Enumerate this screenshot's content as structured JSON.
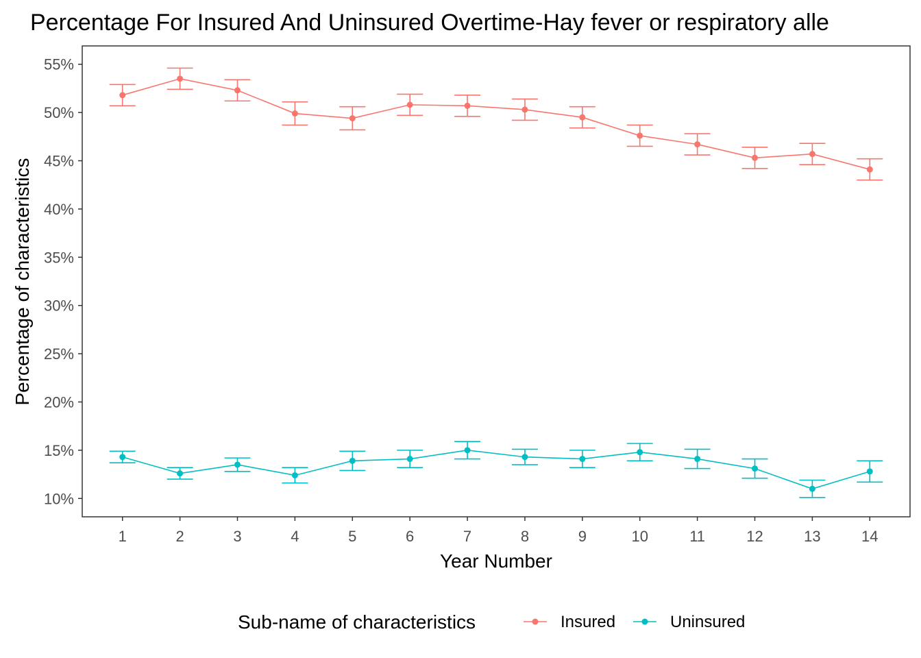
{
  "chart_data": {
    "type": "line",
    "title": "Percentage For Insured And Uninsured Overtime-Hay fever or respiratory alle",
    "xlabel": "Year Number",
    "ylabel": "Percentage of characteristics",
    "x": [
      1,
      2,
      3,
      4,
      5,
      6,
      7,
      8,
      9,
      10,
      11,
      12,
      13,
      14
    ],
    "x_tick_labels": [
      "1",
      "2",
      "3",
      "4",
      "5",
      "6",
      "7",
      "8",
      "9",
      "10",
      "11",
      "12",
      "13",
      "14"
    ],
    "y_ticks": [
      10,
      15,
      20,
      25,
      30,
      35,
      40,
      45,
      50,
      55
    ],
    "y_tick_labels": [
      "10%",
      "15%",
      "20%",
      "25%",
      "30%",
      "35%",
      "40%",
      "45%",
      "50%",
      "55%"
    ],
    "xlim": [
      0.3,
      14.7
    ],
    "ylim": [
      8.1,
      56.9
    ],
    "grid": false,
    "legend": {
      "title": "Sub-name of characteristics",
      "position": "bottom"
    },
    "series": [
      {
        "name": "Insured",
        "color": "#F8766D",
        "values": [
          51.8,
          53.5,
          52.3,
          49.9,
          49.4,
          50.8,
          50.7,
          50.3,
          49.5,
          47.6,
          46.7,
          45.3,
          45.7,
          44.1
        ],
        "lower": [
          50.7,
          52.4,
          51.2,
          48.7,
          48.2,
          49.7,
          49.6,
          49.2,
          48.4,
          46.5,
          45.6,
          44.2,
          44.6,
          43.0
        ],
        "upper": [
          52.9,
          54.6,
          53.4,
          51.1,
          50.6,
          51.9,
          51.8,
          51.4,
          50.6,
          48.7,
          47.8,
          46.4,
          46.8,
          45.2
        ]
      },
      {
        "name": "Uninsured",
        "color": "#00BFC4",
        "values": [
          14.3,
          12.6,
          13.5,
          12.4,
          13.9,
          14.1,
          15.0,
          14.3,
          14.1,
          14.8,
          14.1,
          13.1,
          11.0,
          12.8
        ],
        "lower": [
          13.7,
          12.0,
          12.8,
          11.6,
          12.9,
          13.2,
          14.1,
          13.5,
          13.2,
          13.9,
          13.1,
          12.1,
          10.1,
          11.7
        ],
        "upper": [
          14.9,
          13.2,
          14.2,
          13.2,
          14.9,
          15.0,
          15.9,
          15.1,
          15.0,
          15.7,
          15.1,
          14.1,
          11.9,
          13.9
        ]
      }
    ]
  }
}
